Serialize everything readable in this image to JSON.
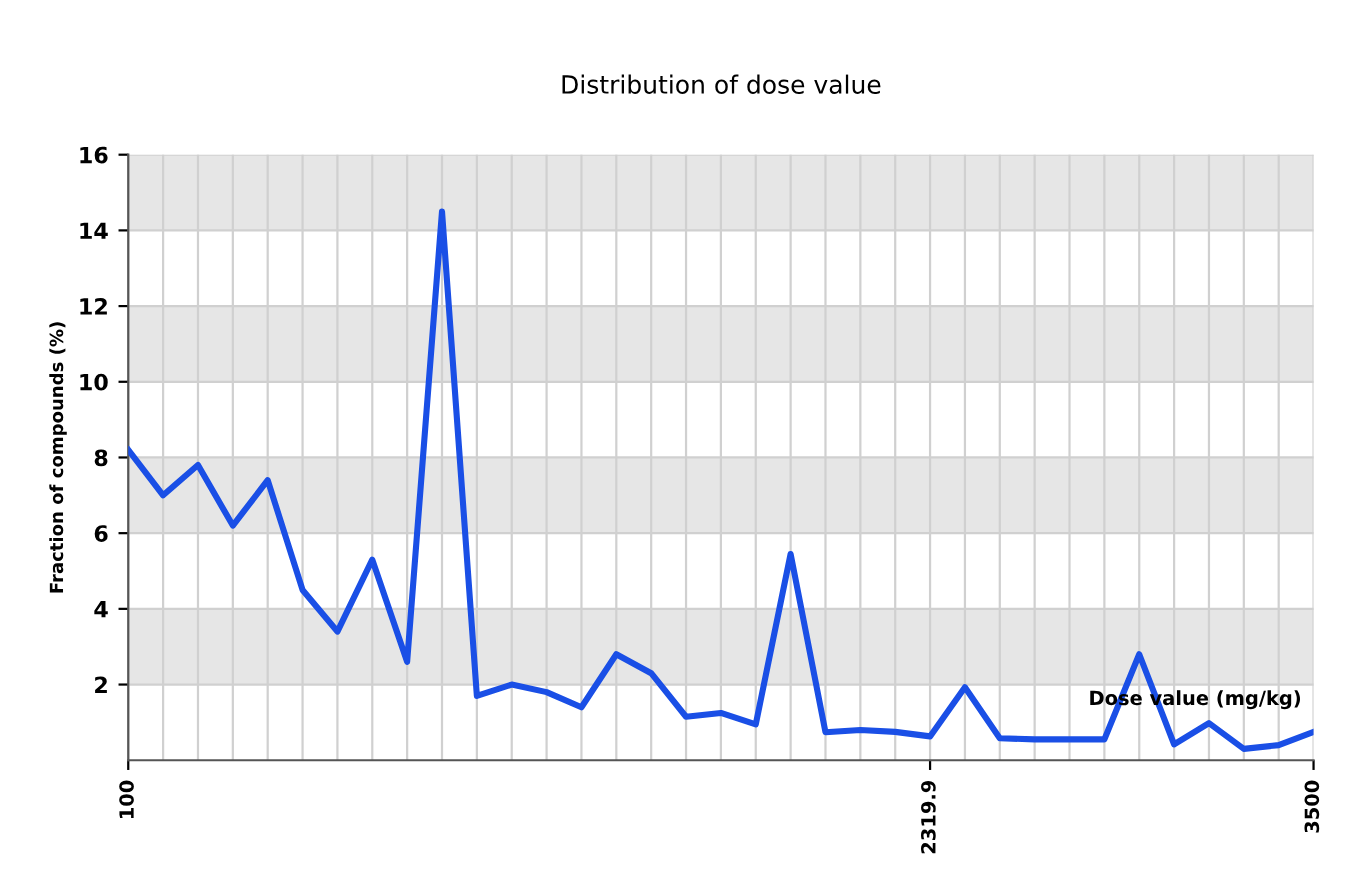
{
  "chart_data": {
    "type": "line",
    "title": "Distribution of dose value",
    "xlabel": "Dose value (mg/kg)",
    "ylabel": "Fraction of compounds (%)",
    "categories": [
      "100",
      null,
      null,
      null,
      null,
      null,
      null,
      null,
      null,
      null,
      null,
      null,
      null,
      null,
      null,
      null,
      null,
      null,
      null,
      null,
      null,
      null,
      null,
      "2319.9",
      null,
      null,
      null,
      null,
      null,
      null,
      null,
      null,
      null,
      null,
      "3500"
    ],
    "series": [
      {
        "color": "#1a4fe6",
        "values": [
          8.2,
          7.0,
          7.8,
          6.2,
          7.4,
          4.5,
          3.4,
          5.3,
          2.6,
          14.5,
          1.7,
          2.0,
          1.8,
          1.4,
          2.8,
          2.3,
          1.15,
          1.25,
          0.95,
          5.45,
          0.74,
          0.8,
          0.75,
          0.63,
          1.93,
          0.58,
          0.55,
          0.55,
          0.55,
          2.8,
          0.42,
          0.98,
          0.3,
          0.4,
          0.75
        ]
      }
    ],
    "ylim": [
      0,
      16
    ],
    "yticks": [
      2,
      4,
      6,
      8,
      10,
      12,
      14,
      16
    ],
    "grid": true,
    "marker": "none",
    "line_style": "solid",
    "bands": [
      {
        "axis": "y",
        "from": 2,
        "to": 4,
        "color": "#e6e6e6"
      },
      {
        "axis": "y",
        "from": 6,
        "to": 8,
        "color": "#e6e6e6"
      },
      {
        "axis": "y",
        "from": 10,
        "to": 12,
        "color": "#e6e6e6"
      },
      {
        "axis": "y",
        "from": 14,
        "to": 16,
        "color": "#e6e6e6"
      }
    ]
  }
}
